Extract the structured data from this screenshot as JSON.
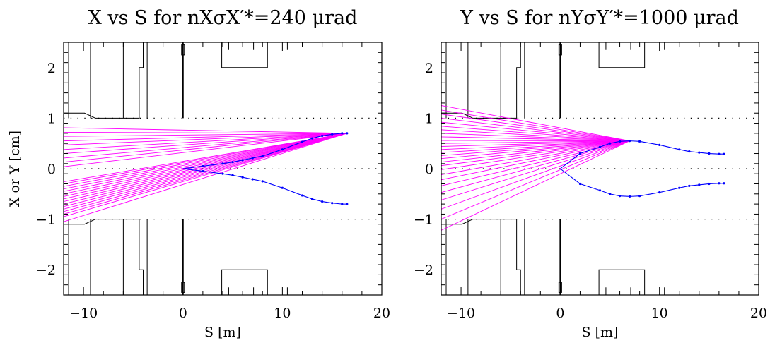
{
  "chart_data": [
    {
      "type": "line",
      "title": "X vs S for nXσX′*=240 μrad",
      "xlabel": "S [m]",
      "ylabel": "X or Y [cm]",
      "xlim": [
        -12,
        20
      ],
      "ylim": [
        -2.5,
        2.5
      ],
      "xticks": [
        "−10",
        "0",
        "10",
        "20"
      ],
      "yticks": [
        "−2",
        "−1",
        "0",
        "1",
        "2"
      ],
      "reference_lines_y": [
        -1,
        0,
        1
      ],
      "colors": {
        "rays": "#ff00ff",
        "orbit": "#0000ff",
        "aperture": "#000000"
      },
      "focus_point": {
        "x": 16.5,
        "y": 0.7
      },
      "rays_end_at_x_minus_12": [
        0.81,
        0.72,
        0.64,
        0.55,
        0.47,
        0.38,
        0.3,
        0.21,
        0.13,
        0.04,
        -0.26,
        -0.3,
        -0.35,
        -0.4,
        -0.45,
        -0.5,
        -0.55,
        -0.6,
        -0.65,
        -0.7,
        -0.75,
        -0.8,
        -0.85,
        -0.9,
        -0.95,
        -1.05
      ],
      "series": [
        {
          "x": [
            0,
            2,
            4,
            5,
            6,
            7,
            8,
            10,
            12,
            13,
            14,
            15,
            16,
            16.5
          ],
          "y": [
            0,
            0.05,
            0.1,
            0.13,
            0.17,
            0.21,
            0.25,
            0.38,
            0.53,
            0.6,
            0.65,
            0.68,
            0.7,
            0.7
          ]
        },
        {
          "x": [
            0,
            2,
            4,
            5,
            6,
            7,
            8,
            10,
            12,
            13,
            14,
            15,
            16,
            16.5
          ],
          "y": [
            0,
            -0.05,
            -0.1,
            -0.13,
            -0.17,
            -0.21,
            -0.25,
            -0.38,
            -0.53,
            -0.6,
            -0.65,
            -0.68,
            -0.7,
            -0.7
          ]
        }
      ]
    },
    {
      "type": "line",
      "title": "Y vs S for nYσY′*=1000 μrad",
      "xlabel": "S [m]",
      "ylabel": "",
      "xlim": [
        -12,
        20
      ],
      "ylim": [
        -2.5,
        2.5
      ],
      "xticks": [
        "−10",
        "0",
        "10",
        "20"
      ],
      "yticks": [
        "−2",
        "−1",
        "0",
        "1",
        "2"
      ],
      "reference_lines_y": [
        -1,
        0,
        1
      ],
      "colors": {
        "rays": "#ff00ff",
        "orbit": "#0000ff",
        "aperture": "#000000"
      },
      "focus_point": {
        "x": 7,
        "y": 0.55
      },
      "rays_end_at_x_minus_12": [
        1.25,
        1.16,
        1.08,
        1.0,
        0.92,
        0.84,
        0.77,
        0.7,
        0.63,
        0.56,
        0.5,
        0.44,
        0.38,
        0.32,
        0.26,
        0.2,
        0.13,
        0.06,
        -0.02,
        -0.12,
        -0.22,
        -0.34,
        -0.47,
        -0.62,
        -0.8,
        -1.0,
        -1.22
      ],
      "series": [
        {
          "x": [
            0,
            2,
            4,
            5,
            6,
            7,
            8,
            10,
            12,
            13,
            14,
            15,
            16,
            16.5
          ],
          "y": [
            0,
            0.3,
            0.43,
            0.5,
            0.54,
            0.55,
            0.54,
            0.47,
            0.38,
            0.34,
            0.32,
            0.3,
            0.29,
            0.29
          ]
        },
        {
          "x": [
            0,
            2,
            4,
            5,
            6,
            7,
            8,
            10,
            12,
            13,
            14,
            15,
            16,
            16.5
          ],
          "y": [
            0,
            -0.3,
            -0.43,
            -0.5,
            -0.54,
            -0.55,
            -0.54,
            -0.47,
            -0.38,
            -0.34,
            -0.32,
            -0.3,
            -0.29,
            -0.29
          ]
        }
      ]
    }
  ],
  "aperture_profile": {
    "x": [
      -12,
      -9.9,
      -9.9,
      -8.8,
      -8.8,
      -6.1,
      -6.1,
      -4.4,
      -4.4,
      -4.0,
      -4.0
    ],
    "y": [
      1.1,
      1.1,
      1.1,
      1.0,
      1.0,
      1.0,
      1.0,
      1.0,
      2.0,
      2.0,
      2.5
    ]
  },
  "aperture_verticals_x": [
    -11.5,
    -9.3,
    -6.0,
    -3.6
  ],
  "ip_column": {
    "x": 0,
    "y_from": 1.0,
    "y_to": 2.5
  },
  "right_box": {
    "x_from": 3.9,
    "x_to": 8.5,
    "y_from": 2.0,
    "y_to": 2.5,
    "stub_x": [
      4.6,
      7.1
    ]
  },
  "top_tick_x": 10.5
}
